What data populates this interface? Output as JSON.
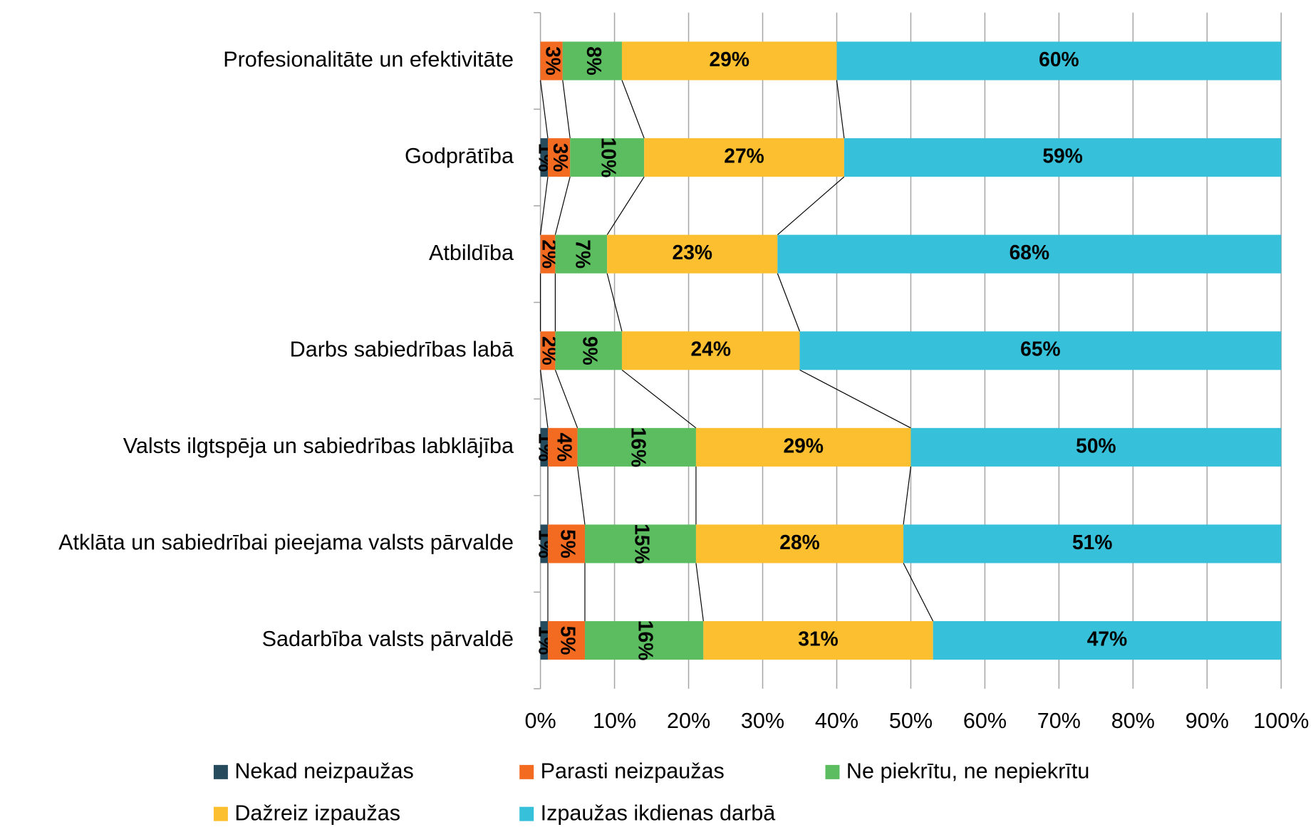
{
  "chart_data": {
    "type": "stacked_bar_horizontal",
    "categories": [
      "Profesionalitāte un efektivitāte",
      "Godprātība",
      "Atbildība",
      "Darbs sabiedrības labā",
      "Valsts ilgtspēja un sabiedrības labklājība",
      "Atklāta un sabiedrībai pieejama valsts pārvalde",
      "Sadarbība valsts pārvaldē"
    ],
    "series": [
      {
        "name": "Nekad neizpaužas",
        "color": "#264b5d",
        "values": [
          0,
          1,
          0,
          0,
          1,
          1,
          1
        ],
        "value_labels": [
          null,
          "1%",
          null,
          null,
          "1%",
          "1%",
          "1%"
        ]
      },
      {
        "name": "Parasti neizpaužas",
        "color": "#f26b21",
        "values": [
          3,
          3,
          2,
          2,
          4,
          5,
          5
        ],
        "value_labels": [
          "3%",
          "3%",
          "2%",
          "2%",
          "4%",
          "5%",
          "5%"
        ]
      },
      {
        "name": "Ne piekrītu, ne nepiekrītu",
        "color": "#5cbd60",
        "values": [
          8,
          10,
          7,
          9,
          16,
          15,
          16
        ],
        "value_labels": [
          "8%",
          "10%",
          "7%",
          "9%",
          "16%",
          "15%",
          "16%"
        ]
      },
      {
        "name": "Dažreiz izpaužas",
        "color": "#fbbf2f",
        "values": [
          29,
          27,
          23,
          24,
          29,
          28,
          31
        ],
        "value_labels": [
          "29%",
          "27%",
          "23%",
          "24%",
          "29%",
          "28%",
          "31%"
        ]
      },
      {
        "name": "Izpaužas ikdienas darbā",
        "color": "#36c0d9",
        "values": [
          60,
          59,
          68,
          65,
          50,
          51,
          47
        ],
        "value_labels": [
          "60%",
          "59%",
          "68%",
          "65%",
          "50%",
          "51%",
          "47%"
        ]
      }
    ],
    "xlim": [
      0,
      100
    ],
    "xticks": [
      {
        "value": 0,
        "label": "0%"
      },
      {
        "value": 10,
        "label": "10%"
      },
      {
        "value": 20,
        "label": "20%"
      },
      {
        "value": 30,
        "label": "30%"
      },
      {
        "value": 40,
        "label": "40%"
      },
      {
        "value": 50,
        "label": "50%"
      },
      {
        "value": 60,
        "label": "60%"
      },
      {
        "value": 70,
        "label": "70%"
      },
      {
        "value": 80,
        "label": "80%"
      },
      {
        "value": 90,
        "label": "90%"
      },
      {
        "value": 100,
        "label": "100%"
      }
    ],
    "grid": true,
    "legend": "bottom"
  }
}
